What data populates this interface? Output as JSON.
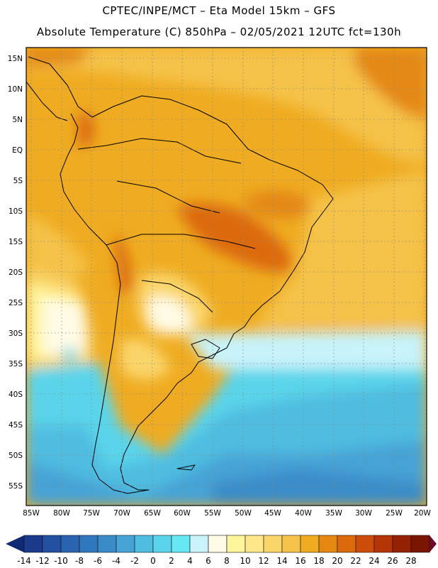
{
  "header": {
    "line1": "CPTEC/INPE/MCT –  Eta Model 15km – GFS",
    "line2": "Absolute Temperature (C) 850hPa – 02/05/2021 12UTC fct=130h"
  },
  "map": {
    "lat_labels": [
      "15N",
      "10N",
      "5N",
      "EQ",
      "5S",
      "10S",
      "15S",
      "20S",
      "25S",
      "30S",
      "35S",
      "40S",
      "45S",
      "50S",
      "55S"
    ],
    "lon_labels": [
      "85W",
      "80W",
      "75W",
      "70W",
      "65W",
      "60W",
      "55W",
      "50W",
      "45W",
      "40W",
      "35W",
      "30W",
      "25W",
      "20W"
    ]
  },
  "colorbar": {
    "labels": [
      "-14",
      "-12",
      "-10",
      "-8",
      "-6",
      "-4",
      "-2",
      "0",
      "2",
      "4",
      "6",
      "8",
      "10",
      "12",
      "14",
      "16",
      "18",
      "20",
      "22",
      "24",
      "26",
      "28"
    ],
    "colors": [
      "#1c3a8c",
      "#2350a0",
      "#2a63b0",
      "#2f78bd",
      "#3a8cc8",
      "#47a3d5",
      "#4fbce0",
      "#5ad4ea",
      "#66e8f2",
      "#c8f3fa",
      "#fffbe6",
      "#fff59c",
      "#fde78a",
      "#fad56a",
      "#f5c24a",
      "#efac22",
      "#e48812",
      "#dc6a0c",
      "#cc4d0a",
      "#b33508",
      "#942104",
      "#7a1502"
    ],
    "low_arrow_color": "#0f2a75",
    "high_arrow_color": "#6a0a28"
  }
}
